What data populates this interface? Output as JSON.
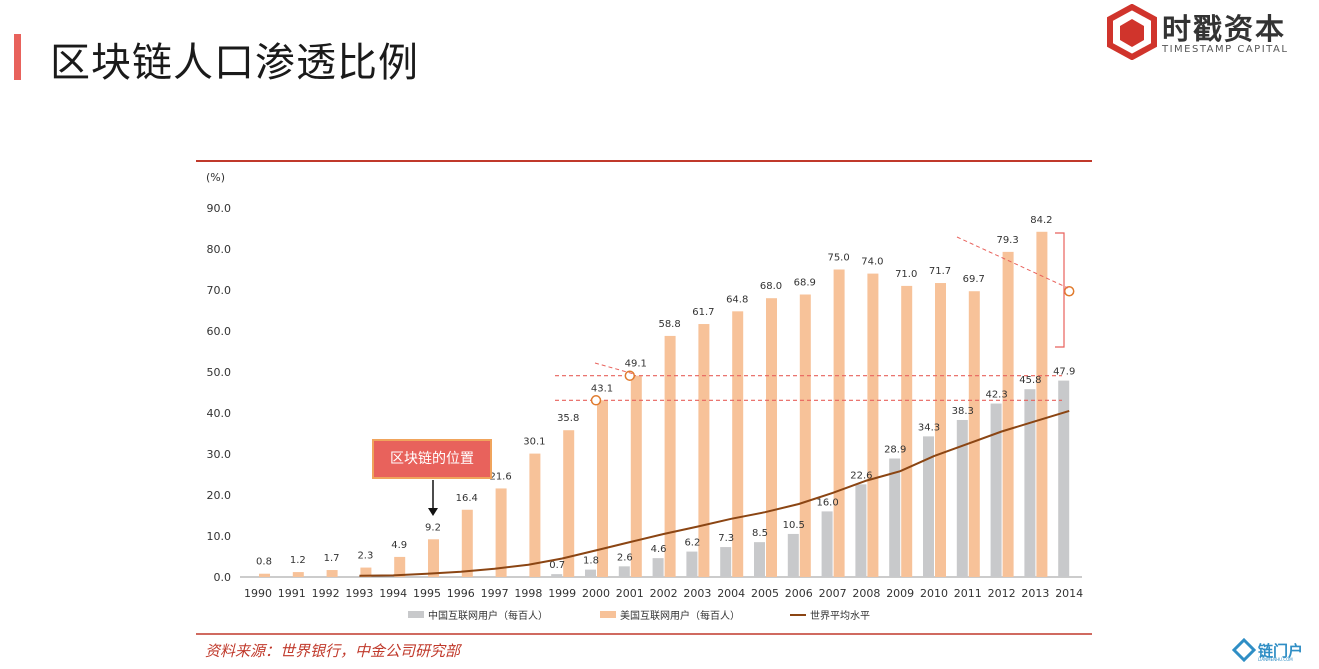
{
  "page": {
    "title": "区块链人口渗透比例",
    "logo_name": "时戳资本",
    "logo_sub": "TIMESTAMP CAPITAL",
    "source": "资料来源：世界银行，中金公司研究部",
    "watermark": "链门户",
    "watermark_sub": "LIANMENHU.COM",
    "callout": "区块链的位置",
    "colors": {
      "accent": "#e8625c",
      "china": "#c8c9cb",
      "usa": "#f7c299",
      "world": "#8b4513",
      "marker": "#e07b2e"
    }
  },
  "chart_data": {
    "type": "bar",
    "ylabel": "(%)",
    "ylim": [
      0,
      90
    ],
    "yticks": [
      "0.0",
      "10.0",
      "20.0",
      "30.0",
      "40.0",
      "50.0",
      "60.0",
      "70.0",
      "80.0",
      "90.0"
    ],
    "categories": [
      "1990",
      "1991",
      "1992",
      "1993",
      "1994",
      "1995",
      "1996",
      "1997",
      "1998",
      "1999",
      "2000",
      "2001",
      "2002",
      "2003",
      "2004",
      "2005",
      "2006",
      "2007",
      "2008",
      "2009",
      "2010",
      "2011",
      "2012",
      "2013",
      "2014"
    ],
    "series": [
      {
        "name": "中国互联网用户（每百人）",
        "kind": "bar",
        "values": [
          0,
          0,
          0,
          0,
          0,
          0,
          0,
          0,
          0,
          0.7,
          1.8,
          2.6,
          4.6,
          6.2,
          7.3,
          8.5,
          10.5,
          16.0,
          22.6,
          28.9,
          34.3,
          38.3,
          42.3,
          45.8,
          47.9
        ],
        "labels": [
          "",
          "",
          "",
          "",
          "",
          "",
          "",
          "",
          "",
          "0.7",
          "1.8",
          "2.6",
          "4.6",
          "6.2",
          "7.3",
          "8.5",
          "10.5",
          "16.0",
          "22.6",
          "28.9",
          "34.3",
          "38.3",
          "42.3",
          "45.8",
          "47.9"
        ]
      },
      {
        "name": "美国互联网用户（每百人）",
        "kind": "bar",
        "values": [
          0.8,
          1.2,
          1.7,
          2.3,
          4.9,
          9.2,
          16.4,
          21.6,
          30.1,
          35.8,
          43.1,
          49.1,
          58.8,
          61.7,
          64.8,
          68.0,
          68.9,
          75.0,
          74.0,
          71.0,
          71.7,
          69.7,
          79.3,
          84.2,
          null
        ],
        "labels": [
          "0.8",
          "1.2",
          "1.7",
          "2.3",
          "4.9",
          "9.2",
          "16.4",
          "21.6",
          "30.1",
          "35.8",
          "43.1",
          "49.1",
          "58.8",
          "61.7",
          "64.8",
          "68.0",
          "68.9",
          "75.0",
          "74.0",
          "71.0",
          "71.7",
          "69.7",
          "79.3",
          "84.2",
          ""
        ]
      },
      {
        "name": "世界平均水平",
        "kind": "line",
        "values": [
          null,
          null,
          null,
          0.3,
          0.4,
          0.8,
          1.3,
          2.0,
          3.0,
          4.5,
          6.5,
          8.5,
          10.5,
          12.3,
          14.2,
          15.8,
          17.8,
          20.5,
          23.5,
          25.8,
          29.5,
          32.5,
          35.5,
          38.0,
          40.5
        ]
      }
    ],
    "markers": [
      {
        "x": "2000",
        "y": 43.1
      },
      {
        "x": "2001",
        "y": 49.1
      },
      {
        "x": "2014",
        "y": 69.7
      }
    ],
    "ref_lines": [
      43.1,
      49.1
    ]
  }
}
